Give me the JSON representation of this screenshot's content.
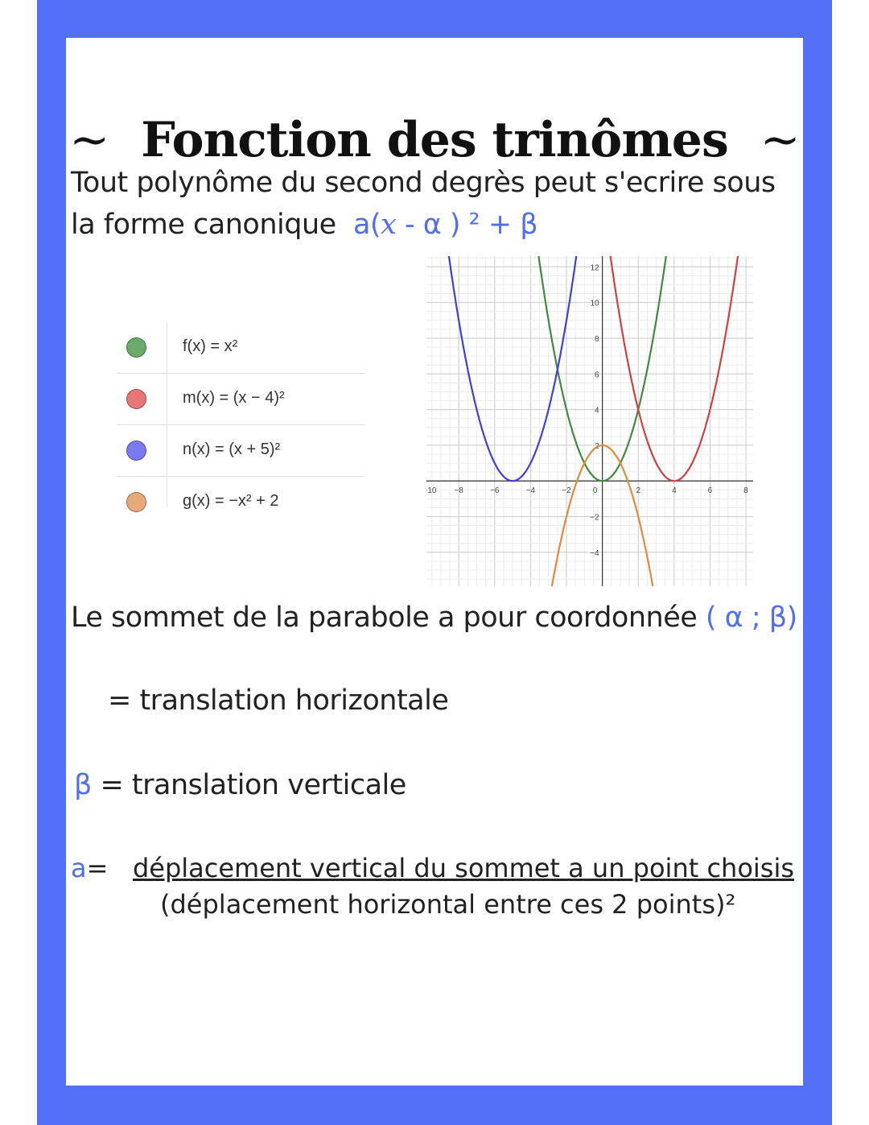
{
  "title": {
    "left": "~",
    "text": "Fonction des trinômes",
    "right": "~"
  },
  "intro": {
    "line1": "Tout polynôme du second degrès peut s'ecrire sous",
    "line2": "la forme canonique",
    "formula": {
      "a": "a(",
      "x": "x",
      "rest": " - α ) ² + β"
    }
  },
  "legend": [
    {
      "expr": "f(x) = x²",
      "color": "#6aaa6a"
    },
    {
      "expr": "m(x) = (x − 4)²",
      "color": "#e77676"
    },
    {
      "expr": "n(x) = (x + 5)²",
      "color": "#7a7af0"
    },
    {
      "expr": "g(x) = −x² + 2",
      "color": "#e8a878"
    }
  ],
  "chart_data": {
    "type": "line",
    "xlim": [
      -9.8,
      8.4
    ],
    "ylim": [
      -5.9,
      12.6
    ],
    "grid": true,
    "x_ticks": [
      "−10",
      "−8",
      "−6",
      "−4",
      "−2",
      "0",
      "2",
      "4",
      "6",
      "8"
    ],
    "x_tick_values": [
      -10,
      -8,
      -6,
      -4,
      -2,
      0,
      2,
      4,
      6,
      8
    ],
    "y_ticks": [
      "−4",
      "−2",
      "2",
      "4",
      "6",
      "8",
      "10",
      "12"
    ],
    "y_tick_values": [
      -4,
      -2,
      2,
      4,
      6,
      8,
      10,
      12
    ],
    "series": [
      {
        "name": "f",
        "a": 1,
        "alpha": 0,
        "beta": 0,
        "color": "#3f8a3f"
      },
      {
        "name": "m",
        "a": 1,
        "alpha": 4,
        "beta": 0,
        "color": "#d04040"
      },
      {
        "name": "n",
        "a": 1,
        "alpha": -5,
        "beta": 0,
        "color": "#4040d8"
      },
      {
        "name": "g",
        "a": -1,
        "alpha": 0,
        "beta": 2,
        "color": "#e08a40"
      }
    ]
  },
  "sommet": {
    "text": "Le sommet de la parabole a pour coordonnée",
    "coords": "( α ; β)"
  },
  "alpha_line": {
    "text": "= translation horizontale"
  },
  "beta_line": {
    "symbol": "β",
    "text": " = translation verticale"
  },
  "a_line": {
    "symbol": "a",
    "eq": "=",
    "numerator": "déplacement vertical du sommet a un point choisis",
    "denominator": "(déplacement horizontal entre ces 2 points)²"
  }
}
